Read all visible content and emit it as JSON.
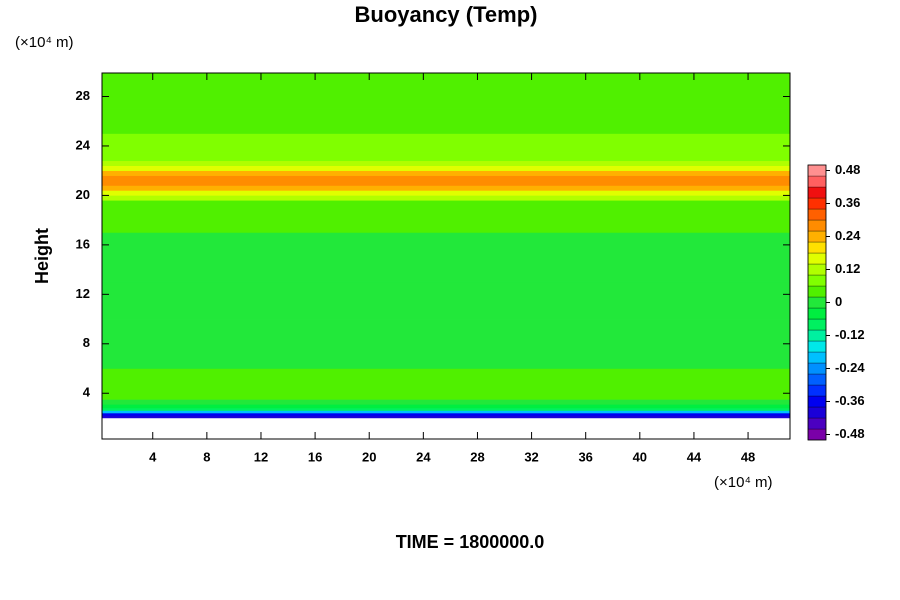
{
  "chart_data": {
    "type": "heatmap",
    "title": "Buoyancy (Temp)",
    "y_label": "Height",
    "y_unit": "(×10⁴ m)",
    "x_unit": "(×10⁴ m)",
    "footer": "TIME = 1800000.0",
    "xlim": [
      0.25,
      51.1
    ],
    "ylim": [
      0.3,
      29.9
    ],
    "xticks": [
      4,
      8,
      12,
      16,
      20,
      24,
      28,
      32,
      36,
      40,
      44,
      48
    ],
    "yticks": [
      4,
      8,
      12,
      16,
      20,
      24,
      28
    ],
    "ybins": [
      0.3,
      2.0,
      2.2,
      2.4,
      2.6,
      2.8,
      3.1,
      3.5,
      6,
      10,
      13,
      17,
      19.6,
      20.0,
      20.4,
      20.8,
      21.6,
      22.0,
      22.4,
      22.8,
      23.5,
      25,
      27,
      29.9
    ],
    "values": [
      null,
      -0.42,
      -0.34,
      -0.2,
      -0.1,
      -0.03,
      0.0,
      0.02,
      0.01,
      0.0,
      0.01,
      0.03,
      0.1,
      0.18,
      0.24,
      0.27,
      0.22,
      0.16,
      0.12,
      0.08,
      0.06,
      0.05,
      0.05
    ],
    "clim": [
      -0.5,
      0.5
    ],
    "cticks": [
      0.48,
      0.36,
      0.24,
      0.12,
      0,
      -0.12,
      -0.24,
      -0.36,
      -0.48
    ],
    "colormap": [
      "#7a00a8",
      "#4b00c0",
      "#1a00d8",
      "#0000f0",
      "#0030ff",
      "#0060ff",
      "#0090ff",
      "#00c0ff",
      "#00e8e8",
      "#00f0a0",
      "#00f060",
      "#00ee40",
      "#22e83a",
      "#50f000",
      "#80ff00",
      "#b0ff00",
      "#e0ff00",
      "#ffe000",
      "#ffb000",
      "#ff8c00",
      "#ff6000",
      "#ff3000",
      "#f01010",
      "#ff6060",
      "#ff9090"
    ]
  }
}
